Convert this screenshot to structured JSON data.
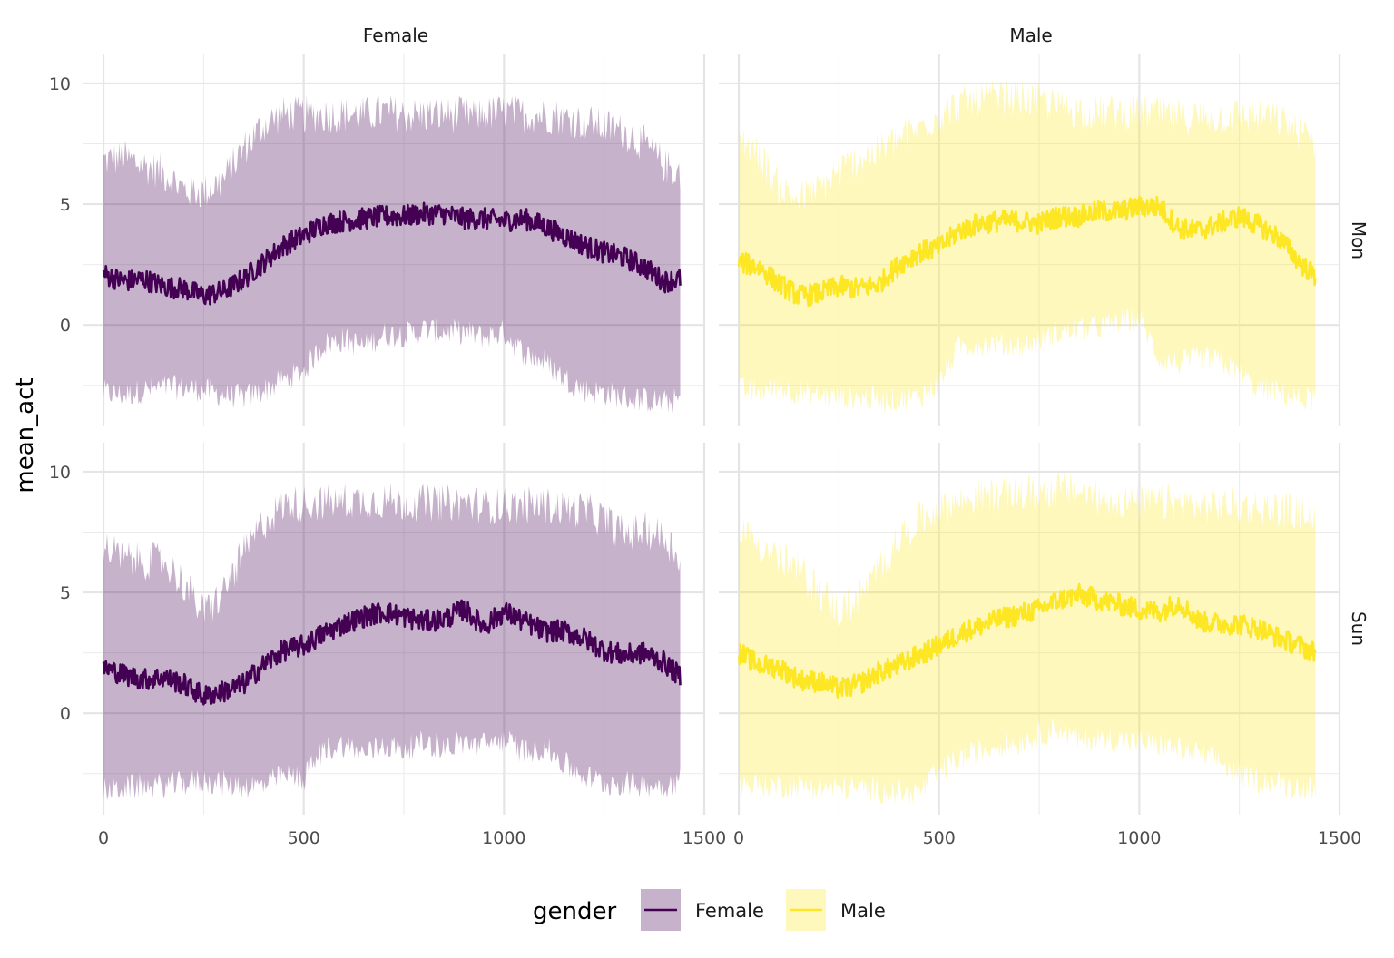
{
  "chart_data": {
    "type": "line",
    "ylabel": "mean_act",
    "xlabel": "",
    "xlim": [
      -50,
      1500
    ],
    "ylim": [
      -4.2,
      11.2
    ],
    "x_ticks": [
      "0",
      "500",
      "1000",
      "1500"
    ],
    "y_ticks": [
      "0",
      "5",
      "10"
    ],
    "grid": true,
    "facet_cols": [
      "Female",
      "Male"
    ],
    "facet_rows": [
      "Mon",
      "Sun"
    ],
    "legend": {
      "title": "gender",
      "position": "bottom",
      "items": [
        {
          "label": "Female",
          "color": "#440154"
        },
        {
          "label": "Male",
          "color": "#FDE725"
        }
      ]
    },
    "band_opacity": 0.3,
    "x_range": [
      0,
      1440
    ],
    "panels": [
      {
        "col": "Female",
        "row": "Mon",
        "color": "#440154",
        "mean": {
          "x": [
            0,
            50,
            100,
            150,
            200,
            250,
            300,
            350,
            400,
            450,
            500,
            550,
            600,
            650,
            700,
            750,
            800,
            850,
            900,
            950,
            1000,
            1050,
            1100,
            1150,
            1200,
            1250,
            1300,
            1350,
            1400,
            1440
          ],
          "y": [
            2.1,
            1.8,
            1.9,
            1.6,
            1.5,
            1.2,
            1.4,
            1.9,
            2.6,
            3.3,
            3.7,
            4.2,
            4.3,
            4.4,
            4.5,
            4.5,
            4.6,
            4.6,
            4.4,
            4.4,
            4.3,
            4.4,
            4.1,
            3.7,
            3.3,
            3.0,
            2.8,
            2.4,
            1.8,
            1.9
          ]
        },
        "upper": {
          "x": [
            0,
            50,
            100,
            150,
            200,
            250,
            300,
            350,
            400,
            450,
            500,
            550,
            600,
            650,
            700,
            750,
            800,
            850,
            900,
            950,
            1000,
            1050,
            1100,
            1150,
            1200,
            1250,
            1300,
            1350,
            1400,
            1440
          ],
          "y": [
            6.8,
            6.9,
            6.6,
            6.3,
            5.6,
            5.5,
            6.0,
            7.3,
            8.3,
            8.7,
            8.7,
            8.7,
            8.7,
            8.7,
            8.8,
            8.7,
            8.7,
            8.7,
            8.7,
            8.7,
            8.8,
            8.7,
            8.7,
            8.6,
            8.4,
            8.2,
            8.0,
            7.5,
            6.6,
            6.3
          ]
        },
        "lower": {
          "x": [
            0,
            50,
            100,
            150,
            200,
            250,
            300,
            350,
            400,
            450,
            500,
            550,
            600,
            650,
            700,
            750,
            800,
            850,
            900,
            950,
            1000,
            1050,
            1100,
            1150,
            1200,
            1250,
            1300,
            1350,
            1400,
            1440
          ],
          "y": [
            -2.8,
            -2.9,
            -2.7,
            -2.6,
            -2.6,
            -2.7,
            -2.9,
            -3.0,
            -2.7,
            -2.3,
            -1.9,
            -0.8,
            -0.6,
            -0.9,
            -0.4,
            -0.4,
            -0.2,
            -0.3,
            -0.3,
            -0.5,
            -0.3,
            -1.2,
            -1.5,
            -2.2,
            -2.7,
            -2.8,
            -3.0,
            -3.1,
            -3.2,
            -3.1
          ]
        }
      },
      {
        "col": "Male",
        "row": "Mon",
        "color": "#FDE725",
        "mean": {
          "x": [
            0,
            50,
            100,
            150,
            200,
            250,
            300,
            350,
            400,
            450,
            500,
            550,
            600,
            650,
            700,
            750,
            800,
            850,
            900,
            950,
            1000,
            1050,
            1100,
            1150,
            1200,
            1250,
            1300,
            1350,
            1400,
            1440
          ],
          "y": [
            2.6,
            2.4,
            1.7,
            1.2,
            1.3,
            1.6,
            1.5,
            1.7,
            2.5,
            3.0,
            3.2,
            3.9,
            4.2,
            4.3,
            4.3,
            4.2,
            4.5,
            4.5,
            4.7,
            4.7,
            4.9,
            4.9,
            4.0,
            3.9,
            4.2,
            4.5,
            4.1,
            3.6,
            2.6,
            2.0
          ]
        },
        "upper": {
          "x": [
            0,
            50,
            100,
            150,
            200,
            250,
            300,
            350,
            400,
            450,
            500,
            550,
            600,
            650,
            700,
            750,
            800,
            850,
            900,
            950,
            1000,
            1050,
            1100,
            1150,
            1200,
            1250,
            1300,
            1350,
            1400,
            1440
          ],
          "y": [
            7.8,
            7.1,
            5.7,
            5.2,
            5.6,
            6.3,
            6.9,
            7.2,
            7.7,
            8.2,
            8.7,
            9.1,
            9.3,
            9.4,
            9.4,
            9.3,
            9.0,
            8.9,
            8.8,
            8.8,
            8.8,
            8.7,
            8.6,
            8.6,
            8.6,
            8.7,
            8.6,
            8.5,
            8.0,
            7.5
          ]
        },
        "lower": {
          "x": [
            0,
            50,
            100,
            150,
            200,
            250,
            300,
            350,
            400,
            450,
            500,
            550,
            600,
            650,
            700,
            750,
            800,
            850,
            900,
            950,
            1000,
            1050,
            1100,
            1150,
            1200,
            1250,
            1300,
            1350,
            1400,
            1440
          ],
          "y": [
            -2.7,
            -2.8,
            -2.6,
            -2.8,
            -2.9,
            -3.0,
            -3.0,
            -3.1,
            -3.1,
            -3.0,
            -2.4,
            -0.9,
            -0.8,
            -0.8,
            -0.9,
            -0.7,
            -0.3,
            -0.2,
            -0.1,
            0.1,
            0.3,
            -1.4,
            -1.6,
            -1.4,
            -1.5,
            -2.0,
            -2.7,
            -2.8,
            -3.1,
            -3.0
          ]
        }
      },
      {
        "col": "Female",
        "row": "Sun",
        "color": "#440154",
        "mean": {
          "x": [
            0,
            50,
            100,
            150,
            200,
            250,
            300,
            350,
            400,
            450,
            500,
            550,
            600,
            650,
            700,
            750,
            800,
            850,
            900,
            950,
            1000,
            1050,
            1100,
            1150,
            1200,
            1250,
            1300,
            1350,
            1400,
            1440
          ],
          "y": [
            1.9,
            1.6,
            1.4,
            1.5,
            1.2,
            0.7,
            0.9,
            1.2,
            2.0,
            2.6,
            2.8,
            3.3,
            3.7,
            4.0,
            4.2,
            4.0,
            3.8,
            3.9,
            4.3,
            3.6,
            4.2,
            3.8,
            3.4,
            3.4,
            3.1,
            2.6,
            2.4,
            2.5,
            2.1,
            1.5
          ]
        },
        "upper": {
          "x": [
            0,
            50,
            100,
            150,
            200,
            250,
            300,
            350,
            400,
            450,
            500,
            550,
            600,
            650,
            700,
            750,
            800,
            850,
            900,
            950,
            1000,
            1050,
            1100,
            1150,
            1200,
            1250,
            1300,
            1350,
            1400,
            1440
          ],
          "y": [
            6.9,
            6.4,
            6.3,
            6.3,
            5.4,
            4.1,
            5.0,
            6.6,
            7.9,
            8.6,
            8.7,
            8.7,
            8.8,
            8.8,
            8.8,
            8.7,
            8.7,
            8.7,
            8.7,
            8.6,
            8.6,
            8.6,
            8.6,
            8.5,
            8.4,
            8.0,
            7.4,
            7.6,
            7.3,
            6.5
          ]
        },
        "lower": {
          "x": [
            0,
            50,
            100,
            150,
            200,
            250,
            300,
            350,
            400,
            450,
            500,
            550,
            600,
            650,
            700,
            750,
            800,
            850,
            900,
            950,
            1000,
            1050,
            1100,
            1150,
            1200,
            1250,
            1300,
            1350,
            1400,
            1440
          ],
          "y": [
            -3.2,
            -3.1,
            -3.0,
            -3.0,
            -2.9,
            -2.8,
            -2.9,
            -3.0,
            -3.0,
            -2.6,
            -2.7,
            -1.5,
            -1.3,
            -1.7,
            -1.3,
            -1.5,
            -1.2,
            -1.4,
            -1.2,
            -1.3,
            -1.1,
            -1.6,
            -1.4,
            -2.1,
            -2.6,
            -2.9,
            -2.9,
            -3.0,
            -3.0,
            -2.8
          ]
        }
      },
      {
        "col": "Male",
        "row": "Sun",
        "color": "#FDE725",
        "mean": {
          "x": [
            0,
            50,
            100,
            150,
            200,
            250,
            300,
            350,
            400,
            450,
            500,
            550,
            600,
            650,
            700,
            750,
            800,
            850,
            900,
            950,
            1000,
            1050,
            1100,
            1150,
            1200,
            1250,
            1300,
            1350,
            1400,
            1440
          ],
          "y": [
            2.5,
            2.0,
            1.9,
            1.4,
            1.3,
            1.0,
            1.2,
            1.7,
            2.0,
            2.4,
            2.8,
            3.3,
            3.6,
            3.9,
            4.1,
            4.3,
            4.7,
            4.9,
            4.7,
            4.5,
            4.3,
            4.2,
            4.6,
            3.8,
            3.7,
            3.7,
            3.5,
            3.1,
            2.8,
            2.5
          ]
        },
        "upper": {
          "x": [
            0,
            50,
            100,
            150,
            200,
            250,
            300,
            350,
            400,
            450,
            500,
            550,
            600,
            650,
            700,
            750,
            800,
            850,
            900,
            950,
            1000,
            1050,
            1100,
            1150,
            1200,
            1250,
            1300,
            1350,
            1400,
            1440
          ],
          "y": [
            7.9,
            7.0,
            6.4,
            5.9,
            5.1,
            4.2,
            4.8,
            5.9,
            7.3,
            8.0,
            8.5,
            8.8,
            9.0,
            9.0,
            9.1,
            9.1,
            9.3,
            9.2,
            8.9,
            8.8,
            8.7,
            8.7,
            8.7,
            8.6,
            8.6,
            8.6,
            8.5,
            8.4,
            8.3,
            8.0
          ]
        },
        "lower": {
          "x": [
            0,
            50,
            100,
            150,
            200,
            250,
            300,
            350,
            400,
            450,
            500,
            550,
            600,
            650,
            700,
            750,
            800,
            850,
            900,
            950,
            1000,
            1050,
            1100,
            1150,
            1200,
            1250,
            1300,
            1350,
            1400,
            1440
          ],
          "y": [
            -3.0,
            -3.0,
            -3.0,
            -3.0,
            -3.1,
            -3.1,
            -3.1,
            -3.2,
            -3.3,
            -3.3,
            -2.4,
            -1.9,
            -1.6,
            -1.3,
            -1.2,
            -0.9,
            -0.6,
            -1.2,
            -1.0,
            -1.1,
            -1.2,
            -1.3,
            -1.5,
            -1.7,
            -2.0,
            -2.6,
            -2.8,
            -2.9,
            -3.1,
            -3.0
          ]
        }
      }
    ]
  }
}
